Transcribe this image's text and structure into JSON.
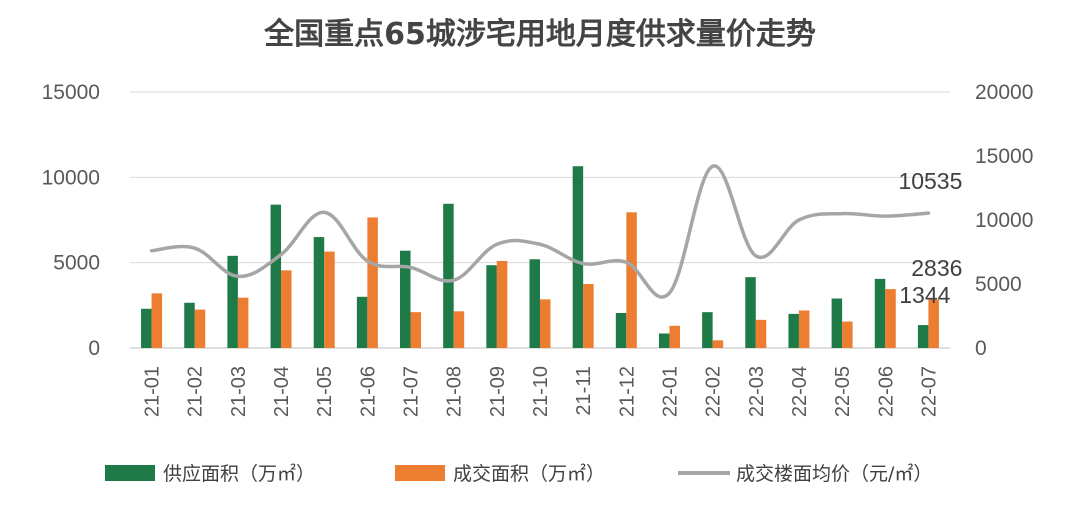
{
  "chart_data": {
    "type": "bar",
    "title": "全国重点65城涉宅用地月度供求量价走势",
    "categories": [
      "21-01",
      "21-02",
      "21-03",
      "21-04",
      "21-05",
      "21-06",
      "21-07",
      "21-08",
      "21-09",
      "21-10",
      "21-11",
      "21-12",
      "22-01",
      "22-02",
      "22-03",
      "22-04",
      "22-05",
      "22-06",
      "22-07"
    ],
    "y_left": {
      "min": 0,
      "max": 15000,
      "ticks": [
        "0",
        "5000",
        "10000",
        "15000"
      ]
    },
    "y_right": {
      "min": 0,
      "max": 20000,
      "ticks": [
        "0",
        "5000",
        "10000",
        "15000",
        "20000"
      ]
    },
    "grid": true,
    "legend_position": "bottom",
    "series": [
      {
        "name": "供应面积（万㎡）",
        "type": "bar",
        "axis": "left",
        "color": "#1e7a47",
        "values": [
          2300,
          2650,
          5400,
          8400,
          6500,
          3000,
          5700,
          8450,
          4850,
          5200,
          10650,
          2050,
          850,
          2100,
          4150,
          2000,
          2900,
          4050,
          1344
        ]
      },
      {
        "name": "成交面积（万㎡）",
        "type": "bar",
        "axis": "left",
        "color": "#ed7d31",
        "values": [
          3200,
          2250,
          2950,
          4550,
          5650,
          7650,
          2100,
          2150,
          5100,
          2850,
          3750,
          7950,
          1300,
          450,
          1650,
          2200,
          1550,
          3450,
          2836
        ]
      },
      {
        "name": "成交楼面均价（元/㎡）",
        "type": "line",
        "axis": "right",
        "color": "#a6a6a6",
        "values": [
          7600,
          7800,
          5600,
          7300,
          10600,
          6800,
          6300,
          5300,
          8100,
          8100,
          6600,
          6700,
          4300,
          14200,
          7200,
          10000,
          10500,
          10300,
          10535
        ]
      }
    ],
    "data_labels": [
      "10535",
      "2836",
      "1344"
    ]
  }
}
